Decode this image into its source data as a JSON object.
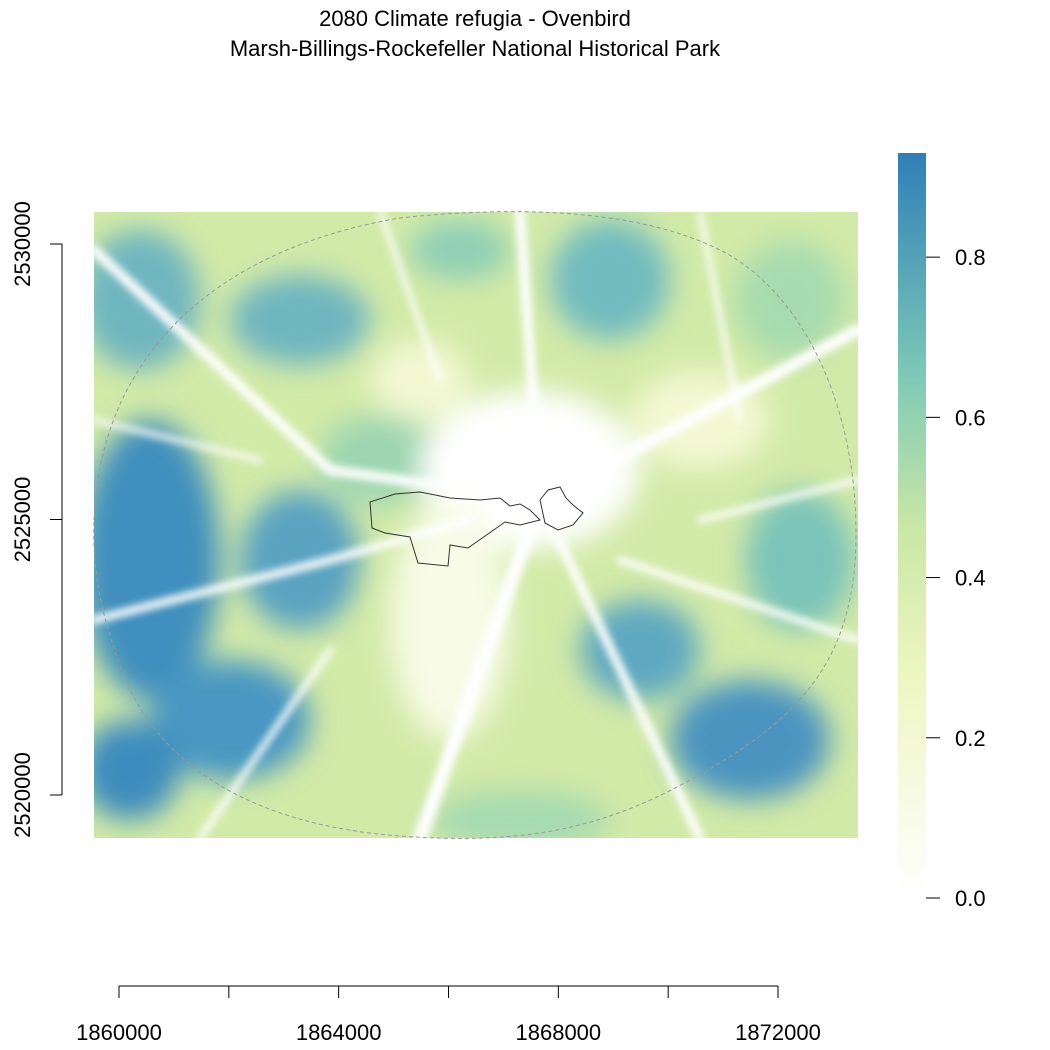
{
  "title": "2080 Climate refugia - Ovenbird",
  "subtitle": "Marsh-Billings-Rockefeller National Historical Park",
  "colors": {
    "scale_low": "#ffffff",
    "scale_mid_low": "#f1f7c6",
    "scale_mid": "#c6e6a4",
    "scale_mid_high": "#74c6b4",
    "scale_high": "#2f7fb8",
    "boundary": "#333333",
    "buffer": "#999999"
  },
  "chart_data": {
    "type": "heatmap",
    "title": "2080 Climate refugia - Ovenbird",
    "subtitle": "Marsh-Billings-Rockefeller National Historical Park",
    "xlabel": "",
    "ylabel": "",
    "x_ticks": [
      1860000,
      1862000,
      1864000,
      1866000,
      1868000,
      1870000,
      1872000
    ],
    "x_tick_labels": [
      "1860000",
      "",
      "1864000",
      "",
      "1868000",
      "",
      "1872000"
    ],
    "y_ticks": [
      2520000,
      2525000,
      2530000
    ],
    "y_tick_labels": [
      "2520000",
      "2525000",
      "2530000"
    ],
    "xlim": [
      1858600,
      1872500
    ],
    "ylim": [
      2519200,
      2530600
    ],
    "colorbar": {
      "min": 0.0,
      "max": 0.93,
      "ticks": [
        0.0,
        0.2,
        0.4,
        0.6,
        0.8
      ],
      "tick_labels": [
        "0.0",
        "0.2",
        "0.4",
        "0.6",
        "0.8"
      ]
    },
    "value_description": "Climate refugia probability, low near park center and roads, higher in outer forested areas (west and southeast)"
  }
}
